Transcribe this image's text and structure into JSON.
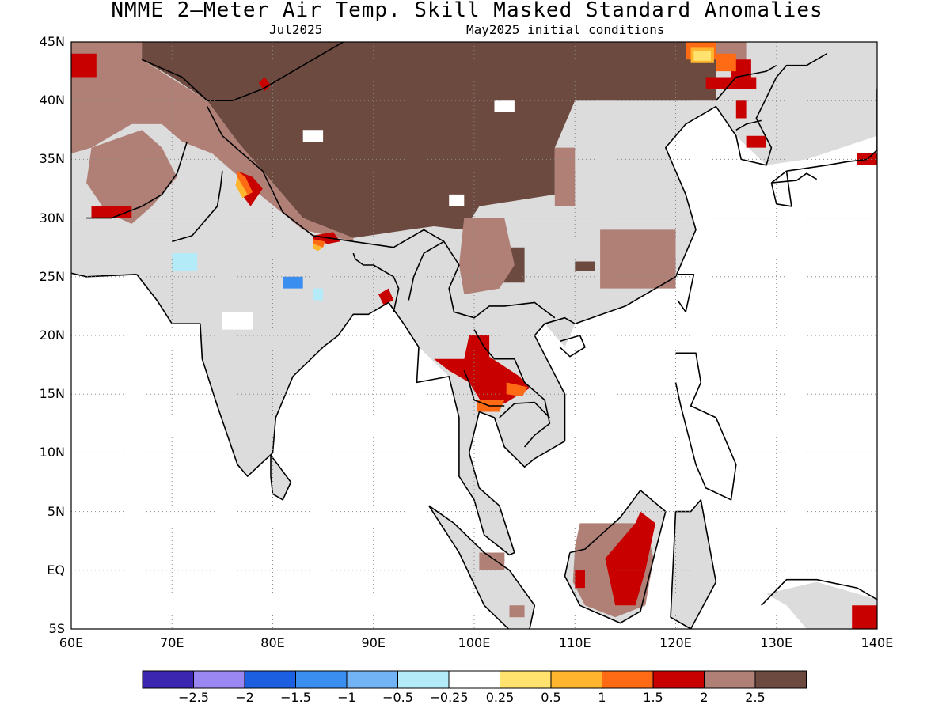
{
  "header": {
    "title": "NMME 2–Meter Air Temp. Skill Masked Standard Anomalies",
    "target_month": "Jul2025",
    "initial_conditions": "May2025 initial conditions"
  },
  "map": {
    "lon_range": [
      60,
      140
    ],
    "lat_range": [
      -5,
      45
    ],
    "lat_labels": [
      "45N",
      "40N",
      "35N",
      "30N",
      "25N",
      "20N",
      "15N",
      "10N",
      "5N",
      "EQ",
      "5S"
    ],
    "lon_labels": [
      "60E",
      "70E",
      "80E",
      "90E",
      "100E",
      "110E",
      "120E",
      "130E",
      "140E"
    ],
    "gridlines": true
  },
  "colorbar": {
    "colors": [
      "#3a26b0",
      "#9b87f2",
      "#1c5fe0",
      "#3a8ef0",
      "#72b3f5",
      "#b3ecf8",
      "#ffffff",
      "#ffe36e",
      "#ffb52e",
      "#ff6a14",
      "#c80000",
      "#b08077",
      "#6d4a40"
    ],
    "labels": [
      "−2.5",
      "−2",
      "−1.5",
      "−1",
      "−0.5",
      "−0.25",
      "0.25",
      "0.5",
      "1",
      "1.5",
      "2",
      "2.5"
    ],
    "masked_color": "#dcdcdc"
  }
}
